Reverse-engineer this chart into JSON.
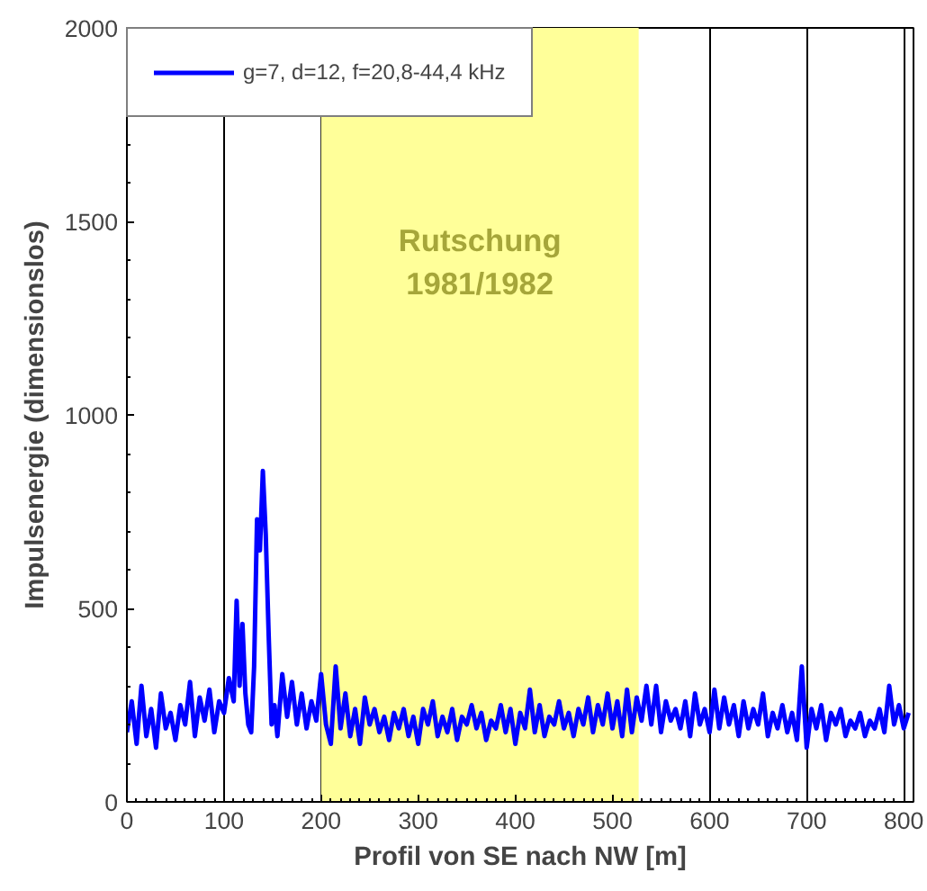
{
  "chart_data": {
    "type": "line",
    "xlabel": "Profil von SE nach NW [m]",
    "ylabel": "Impulsenergie (dimensionslos)",
    "xlim": [
      0,
      810
    ],
    "ylim": [
      0,
      2000
    ],
    "xticks": [
      0,
      100,
      200,
      300,
      400,
      500,
      600,
      700,
      800
    ],
    "yticks": [
      0,
      500,
      1000,
      1500,
      2000
    ],
    "grid": "x",
    "legend": "top left",
    "line_style": "solid",
    "marker": "none",
    "bands": [
      {
        "axis": "x",
        "from": 200,
        "to": 527,
        "color": "#ffff99"
      }
    ],
    "annotations": [
      "Rutschung\n1981/1982"
    ],
    "series": [
      {
        "name": "g=7, d=12, f=20,8-44,4 kHz",
        "color": "#0000ff",
        "x": [
          0,
          5,
          10,
          15,
          20,
          25,
          30,
          35,
          40,
          45,
          50,
          55,
          60,
          65,
          70,
          75,
          80,
          85,
          90,
          95,
          100,
          105,
          110,
          113,
          116,
          119,
          122,
          125,
          128,
          131,
          134,
          137,
          140,
          143,
          146,
          149,
          152,
          155,
          160,
          165,
          170,
          175,
          180,
          185,
          190,
          195,
          200,
          205,
          210,
          215,
          220,
          225,
          230,
          235,
          240,
          245,
          250,
          255,
          260,
          265,
          270,
          275,
          280,
          285,
          290,
          295,
          300,
          305,
          310,
          315,
          320,
          325,
          330,
          335,
          340,
          345,
          350,
          355,
          360,
          365,
          370,
          375,
          380,
          385,
          390,
          395,
          400,
          405,
          410,
          415,
          420,
          425,
          430,
          435,
          440,
          445,
          450,
          455,
          460,
          465,
          470,
          475,
          480,
          485,
          490,
          495,
          500,
          505,
          510,
          515,
          520,
          525,
          530,
          535,
          540,
          545,
          550,
          555,
          560,
          565,
          570,
          575,
          580,
          585,
          590,
          595,
          600,
          605,
          610,
          615,
          620,
          625,
          630,
          635,
          640,
          645,
          650,
          655,
          660,
          665,
          670,
          675,
          680,
          685,
          690,
          695,
          700,
          705,
          710,
          715,
          720,
          725,
          730,
          735,
          740,
          745,
          750,
          755,
          760,
          765,
          770,
          775,
          780,
          785,
          790,
          795,
          800,
          805
        ],
        "values": [
          180,
          260,
          150,
          300,
          170,
          240,
          140,
          280,
          190,
          230,
          160,
          250,
          200,
          310,
          170,
          270,
          210,
          290,
          180,
          260,
          230,
          320,
          260,
          520,
          300,
          460,
          280,
          200,
          180,
          350,
          730,
          650,
          855,
          690,
          430,
          200,
          250,
          170,
          330,
          220,
          310,
          200,
          280,
          190,
          260,
          210,
          330,
          200,
          150,
          350,
          190,
          280,
          170,
          240,
          150,
          270,
          200,
          240,
          180,
          220,
          160,
          230,
          190,
          240,
          170,
          220,
          150,
          240,
          200,
          260,
          170,
          220,
          180,
          240,
          160,
          220,
          200,
          250,
          190,
          230,
          160,
          210,
          190,
          250,
          180,
          240,
          150,
          230,
          190,
          290,
          180,
          250,
          170,
          220,
          200,
          260,
          190,
          230,
          170,
          240,
          200,
          270,
          180,
          250,
          200,
          280,
          190,
          260,
          170,
          290,
          180,
          270,
          210,
          300,
          200,
          300,
          180,
          260,
          210,
          240,
          190,
          260,
          170,
          280,
          200,
          240,
          180,
          290,
          190,
          270,
          200,
          250,
          170,
          260,
          190,
          240,
          200,
          280,
          170,
          230,
          190,
          250,
          180,
          230,
          160,
          350,
          140,
          240,
          190,
          250,
          160,
          230,
          200,
          240,
          170,
          210,
          190,
          230,
          170,
          210,
          190,
          240,
          180,
          300,
          200,
          250,
          190,
          230
        ]
      }
    ]
  }
}
